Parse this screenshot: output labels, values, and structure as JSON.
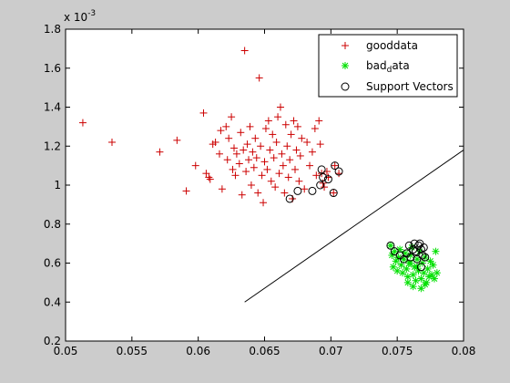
{
  "colors": {
    "figure_bg": "#cccccc",
    "axes_bg": "#ffffff",
    "good": "#cc0000",
    "bad": "#00e000",
    "support": "#000000",
    "boundary": "#000000"
  },
  "chart_data": {
    "type": "scatter",
    "exponent_label": "x 10",
    "exponent_power": "-3",
    "xlim": [
      0.05,
      0.08
    ],
    "ylim": [
      0.2,
      1.8
    ],
    "y_scale_note": "y values multiplied by 10^-3",
    "xticks": [
      "0.05",
      "0.055",
      "0.06",
      "0.065",
      "0.07",
      "0.075",
      "0.08"
    ],
    "xtick_values": [
      0.05,
      0.055,
      0.06,
      0.065,
      0.07,
      0.075,
      0.08
    ],
    "yticks": [
      "0.2",
      "0.4",
      "0.6",
      "0.8",
      "1",
      "1.2",
      "1.4",
      "1.6",
      "1.8"
    ],
    "ytick_values": [
      0.2,
      0.4,
      0.6,
      0.8,
      1.0,
      1.2,
      1.4,
      1.6,
      1.8
    ],
    "legend": {
      "placement": "top-right",
      "entries": [
        {
          "key": "good",
          "label": "gooddata",
          "marker": "plus"
        },
        {
          "key": "bad",
          "label_main": "bad",
          "label_sub": "d",
          "label_rest": "ata",
          "marker": "star"
        },
        {
          "key": "support",
          "label": "Support Vectors",
          "marker": "circle"
        }
      ]
    },
    "series": [
      {
        "key": "good",
        "marker": "plus",
        "points": [
          [
            0.0513,
            1.32
          ],
          [
            0.0535,
            1.22
          ],
          [
            0.0571,
            1.17
          ],
          [
            0.0584,
            1.23
          ],
          [
            0.0591,
            0.97
          ],
          [
            0.0598,
            1.1
          ],
          [
            0.0604,
            1.37
          ],
          [
            0.0606,
            1.06
          ],
          [
            0.0608,
            1.04
          ],
          [
            0.0609,
            1.03
          ],
          [
            0.0611,
            1.21
          ],
          [
            0.0613,
            1.22
          ],
          [
            0.0616,
            1.16
          ],
          [
            0.0617,
            1.28
          ],
          [
            0.0618,
            0.98
          ],
          [
            0.0621,
            1.3
          ],
          [
            0.0622,
            1.13
          ],
          [
            0.0623,
            1.24
          ],
          [
            0.0625,
            1.35
          ],
          [
            0.0626,
            1.08
          ],
          [
            0.0627,
            1.19
          ],
          [
            0.0628,
            1.05
          ],
          [
            0.0629,
            1.16
          ],
          [
            0.0631,
            1.11
          ],
          [
            0.0632,
            1.27
          ],
          [
            0.0633,
            0.95
          ],
          [
            0.0634,
            1.18
          ],
          [
            0.0635,
            1.69
          ],
          [
            0.0636,
            1.07
          ],
          [
            0.0637,
            1.21
          ],
          [
            0.0638,
            1.13
          ],
          [
            0.0639,
            1.3
          ],
          [
            0.064,
            1.0
          ],
          [
            0.0641,
            1.17
          ],
          [
            0.0642,
            1.09
          ],
          [
            0.0643,
            1.24
          ],
          [
            0.0644,
            1.14
          ],
          [
            0.0645,
            0.96
          ],
          [
            0.0646,
            1.55
          ],
          [
            0.0647,
            1.2
          ],
          [
            0.0648,
            1.05
          ],
          [
            0.0649,
            0.91
          ],
          [
            0.065,
            1.12
          ],
          [
            0.0651,
            1.29
          ],
          [
            0.0652,
            1.08
          ],
          [
            0.0653,
            1.33
          ],
          [
            0.0654,
            1.18
          ],
          [
            0.0655,
            1.02
          ],
          [
            0.0656,
            1.26
          ],
          [
            0.0657,
            1.14
          ],
          [
            0.0658,
            0.99
          ],
          [
            0.0659,
            1.22
          ],
          [
            0.066,
            1.35
          ],
          [
            0.0661,
            1.06
          ],
          [
            0.0662,
            1.4
          ],
          [
            0.0663,
            1.16
          ],
          [
            0.0664,
            1.1
          ],
          [
            0.0665,
            0.96
          ],
          [
            0.0666,
            1.31
          ],
          [
            0.0667,
            1.2
          ],
          [
            0.0668,
            1.04
          ],
          [
            0.0669,
            1.13
          ],
          [
            0.067,
            1.26
          ],
          [
            0.0671,
            0.93
          ],
          [
            0.0672,
            1.33
          ],
          [
            0.0673,
            1.08
          ],
          [
            0.0674,
            1.18
          ],
          [
            0.0675,
            1.3
          ],
          [
            0.0676,
            1.02
          ],
          [
            0.0677,
            1.15
          ],
          [
            0.0678,
            1.24
          ],
          [
            0.068,
            0.98
          ],
          [
            0.0682,
            1.22
          ],
          [
            0.0684,
            1.1
          ],
          [
            0.0686,
            1.17
          ],
          [
            0.0688,
            1.29
          ],
          [
            0.0689,
            1.05
          ],
          [
            0.0691,
            1.33
          ],
          [
            0.0692,
            1.21
          ],
          [
            0.0693,
            1.06
          ],
          [
            0.0694,
            1.01
          ],
          [
            0.0695,
            0.99
          ],
          [
            0.0697,
            1.07
          ],
          [
            0.0698,
            1.04
          ],
          [
            0.0702,
            0.96
          ],
          [
            0.0703,
            1.1
          ],
          [
            0.0706,
            1.06
          ]
        ]
      },
      {
        "key": "bad",
        "marker": "star",
        "points": [
          [
            0.0745,
            0.69
          ],
          [
            0.0746,
            0.64
          ],
          [
            0.0747,
            0.58
          ],
          [
            0.0748,
            0.66
          ],
          [
            0.0749,
            0.61
          ],
          [
            0.075,
            0.56
          ],
          [
            0.0751,
            0.63
          ],
          [
            0.0752,
            0.67
          ],
          [
            0.0753,
            0.59
          ],
          [
            0.0754,
            0.55
          ],
          [
            0.0755,
            0.62
          ],
          [
            0.0756,
            0.65
          ],
          [
            0.0757,
            0.57
          ],
          [
            0.0758,
            0.53
          ],
          [
            0.0759,
            0.6
          ],
          [
            0.076,
            0.64
          ],
          [
            0.0761,
            0.68
          ],
          [
            0.0762,
            0.54
          ],
          [
            0.0763,
            0.58
          ],
          [
            0.0764,
            0.51
          ],
          [
            0.0765,
            0.62
          ],
          [
            0.0766,
            0.56
          ],
          [
            0.0767,
            0.66
          ],
          [
            0.0768,
            0.52
          ],
          [
            0.0769,
            0.6
          ],
          [
            0.077,
            0.55
          ],
          [
            0.0771,
            0.63
          ],
          [
            0.0772,
            0.5
          ],
          [
            0.0773,
            0.57
          ],
          [
            0.0774,
            0.53
          ],
          [
            0.0775,
            0.61
          ],
          [
            0.0776,
            0.54
          ],
          [
            0.0777,
            0.59
          ],
          [
            0.0778,
            0.52
          ],
          [
            0.0779,
            0.66
          ],
          [
            0.078,
            0.55
          ],
          [
            0.0762,
            0.48
          ],
          [
            0.0768,
            0.47
          ],
          [
            0.0758,
            0.5
          ],
          [
            0.0771,
            0.49
          ],
          [
            0.0765,
            0.58
          ],
          [
            0.076,
            0.6
          ]
        ]
      },
      {
        "key": "support",
        "marker": "circle",
        "points": [
          [
            0.0669,
            0.93
          ],
          [
            0.0675,
            0.97
          ],
          [
            0.0686,
            0.97
          ],
          [
            0.0692,
            1.0
          ],
          [
            0.0694,
            1.04
          ],
          [
            0.0693,
            1.08
          ],
          [
            0.0702,
            0.96
          ],
          [
            0.0703,
            1.1
          ],
          [
            0.0706,
            1.07
          ],
          [
            0.0698,
            1.03
          ],
          [
            0.0745,
            0.69
          ],
          [
            0.0748,
            0.66
          ],
          [
            0.0752,
            0.64
          ],
          [
            0.0755,
            0.62
          ],
          [
            0.0757,
            0.65
          ],
          [
            0.0759,
            0.69
          ],
          [
            0.076,
            0.63
          ],
          [
            0.0762,
            0.67
          ],
          [
            0.0763,
            0.7
          ],
          [
            0.0764,
            0.66
          ],
          [
            0.0765,
            0.62
          ],
          [
            0.0766,
            0.69
          ],
          [
            0.0767,
            0.7
          ],
          [
            0.0768,
            0.67
          ],
          [
            0.0769,
            0.64
          ],
          [
            0.077,
            0.68
          ],
          [
            0.0771,
            0.63
          ],
          [
            0.0768,
            0.58
          ]
        ]
      }
    ],
    "boundary_line": {
      "x": [
        0.0635,
        0.08
      ],
      "y": [
        0.4,
        1.18
      ]
    },
    "grid": false
  }
}
